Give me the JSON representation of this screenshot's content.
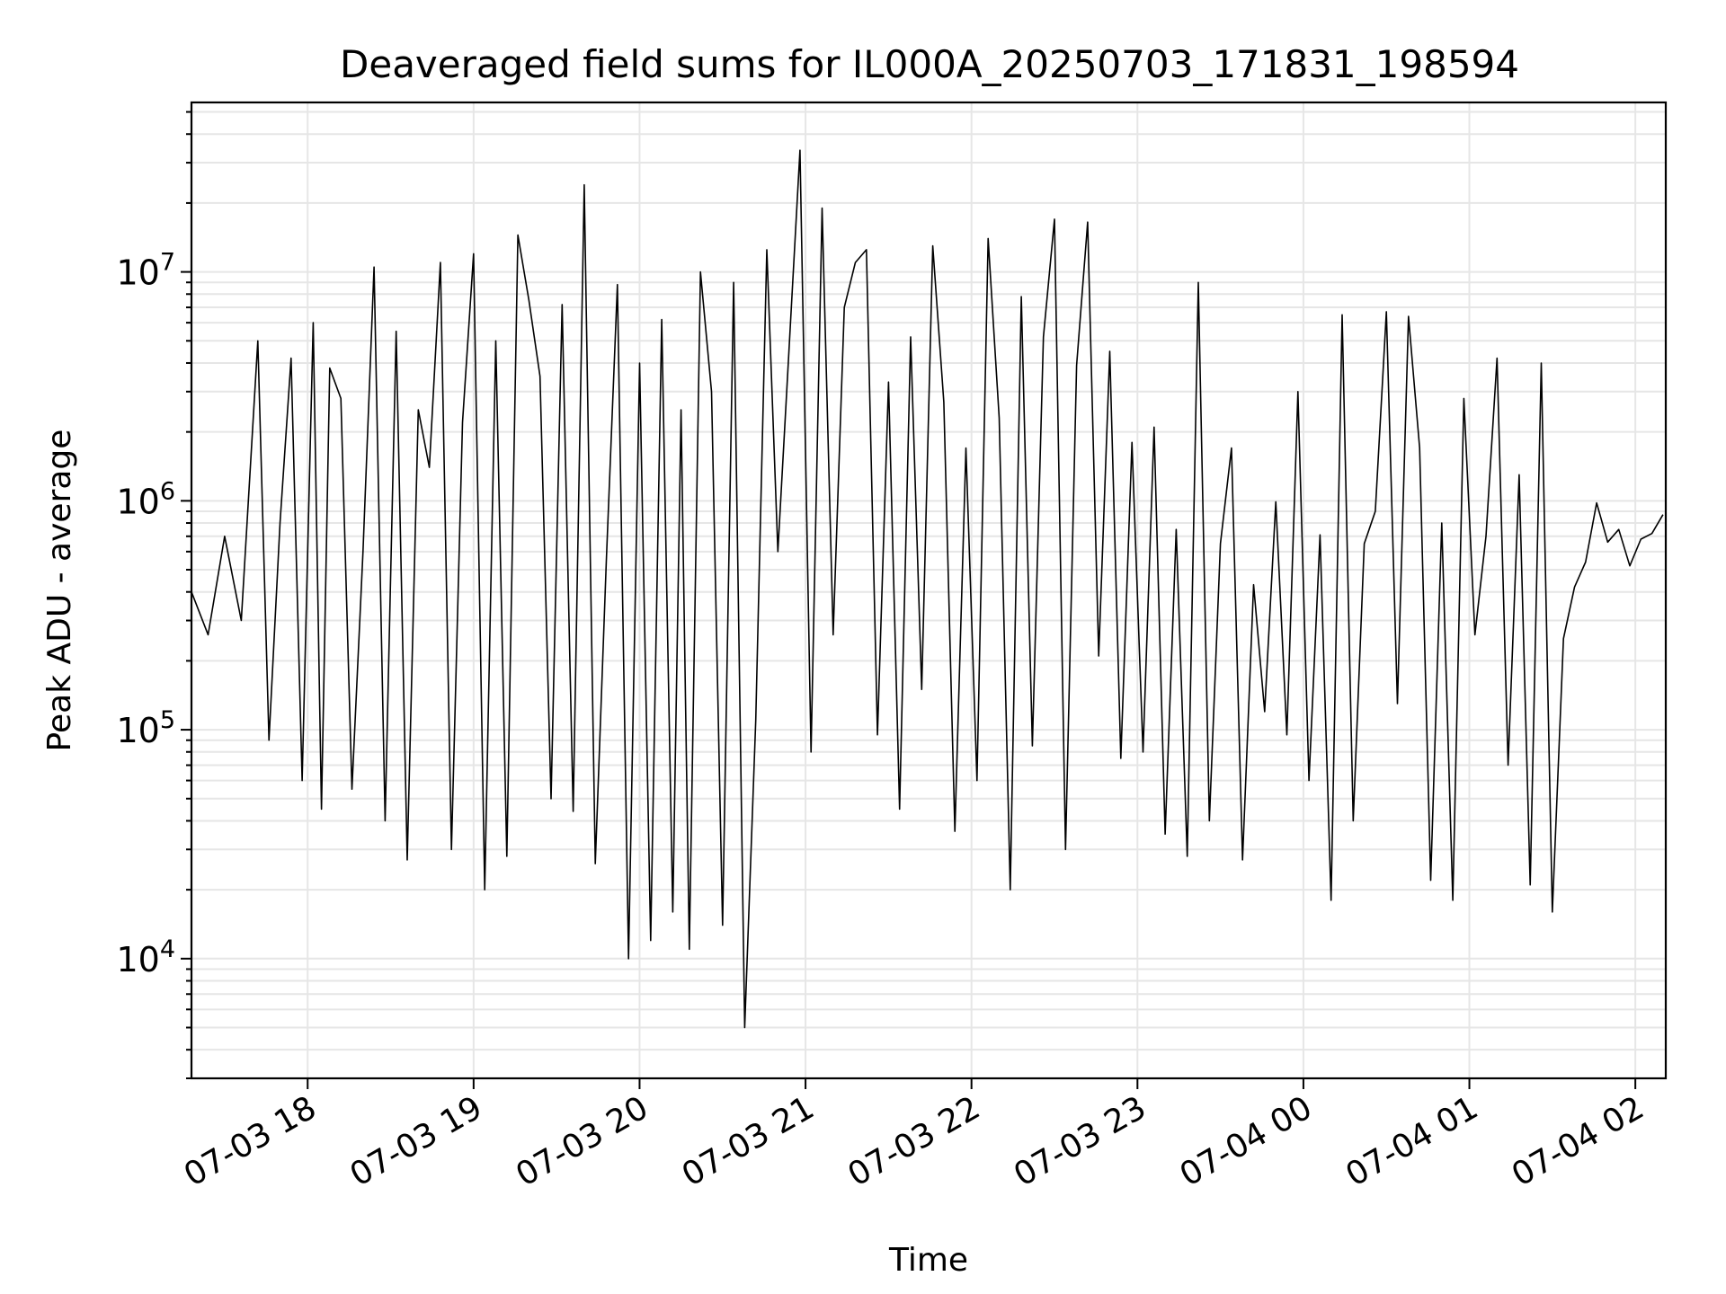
{
  "chart_data": {
    "type": "line",
    "title": "Deaveraged field sums for IL000A_20250703_171831_198594",
    "xlabel": "Time",
    "ylabel": "Peak ADU - average",
    "yscale": "log",
    "ylim": [
      3000,
      55000000
    ],
    "xlim": [
      "2025-07-03 17:18",
      "2025-07-04 02:11"
    ],
    "grid": true,
    "line_color": "#000000",
    "grid_color": "#e6e6e6",
    "x_ticks": [
      {
        "value": "2025-07-03 18:00",
        "label": "07-03 18"
      },
      {
        "value": "2025-07-03 19:00",
        "label": "07-03 19"
      },
      {
        "value": "2025-07-03 20:00",
        "label": "07-03 20"
      },
      {
        "value": "2025-07-03 21:00",
        "label": "07-03 21"
      },
      {
        "value": "2025-07-03 22:00",
        "label": "07-03 22"
      },
      {
        "value": "2025-07-03 23:00",
        "label": "07-03 23"
      },
      {
        "value": "2025-07-04 00:00",
        "label": "07-04 00"
      },
      {
        "value": "2025-07-04 01:00",
        "label": "07-04 01"
      },
      {
        "value": "2025-07-04 02:00",
        "label": "07-04 02"
      }
    ],
    "y_ticks": [
      {
        "value": 10000,
        "base": "10",
        "exp": "4"
      },
      {
        "value": 100000,
        "base": "10",
        "exp": "5"
      },
      {
        "value": 1000000,
        "base": "10",
        "exp": "6"
      },
      {
        "value": 10000000,
        "base": "10",
        "exp": "7"
      }
    ],
    "series": [
      {
        "x": [
          "2025-07-03 17:18",
          "2025-07-03 17:24",
          "2025-07-03 17:30",
          "2025-07-03 17:36",
          "2025-07-03 17:42",
          "2025-07-03 17:46",
          "2025-07-03 17:50",
          "2025-07-03 17:54",
          "2025-07-03 17:58",
          "2025-07-03 18:02",
          "2025-07-03 18:05",
          "2025-07-03 18:08",
          "2025-07-03 18:12",
          "2025-07-03 18:16",
          "2025-07-03 18:20",
          "2025-07-03 18:24",
          "2025-07-03 18:28",
          "2025-07-03 18:32",
          "2025-07-03 18:36",
          "2025-07-03 18:40",
          "2025-07-03 18:44",
          "2025-07-03 18:48",
          "2025-07-03 18:52",
          "2025-07-03 18:56",
          "2025-07-03 19:00",
          "2025-07-03 19:04",
          "2025-07-03 19:08",
          "2025-07-03 19:12",
          "2025-07-03 19:16",
          "2025-07-03 19:20",
          "2025-07-03 19:24",
          "2025-07-03 19:28",
          "2025-07-03 19:32",
          "2025-07-03 19:36",
          "2025-07-03 19:40",
          "2025-07-03 19:44",
          "2025-07-03 19:48",
          "2025-07-03 19:52",
          "2025-07-03 19:56",
          "2025-07-03 20:00",
          "2025-07-03 20:04",
          "2025-07-03 20:08",
          "2025-07-03 20:12",
          "2025-07-03 20:15",
          "2025-07-03 20:18",
          "2025-07-03 20:22",
          "2025-07-03 20:26",
          "2025-07-03 20:30",
          "2025-07-03 20:34",
          "2025-07-03 20:38",
          "2025-07-03 20:42",
          "2025-07-03 20:46",
          "2025-07-03 20:50",
          "2025-07-03 20:54",
          "2025-07-03 20:58",
          "2025-07-03 21:02",
          "2025-07-03 21:06",
          "2025-07-03 21:10",
          "2025-07-03 21:14",
          "2025-07-03 21:18",
          "2025-07-03 21:22",
          "2025-07-03 21:26",
          "2025-07-03 21:30",
          "2025-07-03 21:34",
          "2025-07-03 21:38",
          "2025-07-03 21:42",
          "2025-07-03 21:46",
          "2025-07-03 21:50",
          "2025-07-03 21:54",
          "2025-07-03 21:58",
          "2025-07-03 22:02",
          "2025-07-03 22:06",
          "2025-07-03 22:10",
          "2025-07-03 22:14",
          "2025-07-03 22:18",
          "2025-07-03 22:22",
          "2025-07-03 22:26",
          "2025-07-03 22:30",
          "2025-07-03 22:34",
          "2025-07-03 22:38",
          "2025-07-03 22:42",
          "2025-07-03 22:46",
          "2025-07-03 22:50",
          "2025-07-03 22:54",
          "2025-07-03 22:58",
          "2025-07-03 23:02",
          "2025-07-03 23:06",
          "2025-07-03 23:10",
          "2025-07-03 23:14",
          "2025-07-03 23:18",
          "2025-07-03 23:22",
          "2025-07-03 23:26",
          "2025-07-03 23:30",
          "2025-07-03 23:34",
          "2025-07-03 23:38",
          "2025-07-03 23:42",
          "2025-07-03 23:46",
          "2025-07-03 23:50",
          "2025-07-03 23:54",
          "2025-07-03 23:58",
          "2025-07-04 00:02",
          "2025-07-04 00:06",
          "2025-07-04 00:10",
          "2025-07-04 00:14",
          "2025-07-04 00:18",
          "2025-07-04 00:22",
          "2025-07-04 00:26",
          "2025-07-04 00:30",
          "2025-07-04 00:34",
          "2025-07-04 00:38",
          "2025-07-04 00:42",
          "2025-07-04 00:46",
          "2025-07-04 00:50",
          "2025-07-04 00:54",
          "2025-07-04 00:58",
          "2025-07-04 01:02",
          "2025-07-04 01:06",
          "2025-07-04 01:10",
          "2025-07-04 01:14",
          "2025-07-04 01:18",
          "2025-07-04 01:22",
          "2025-07-04 01:26",
          "2025-07-04 01:30",
          "2025-07-04 01:34",
          "2025-07-04 01:38",
          "2025-07-04 01:42",
          "2025-07-04 01:46",
          "2025-07-04 01:50",
          "2025-07-04 01:54",
          "2025-07-04 01:58",
          "2025-07-04 02:02",
          "2025-07-04 02:06",
          "2025-07-04 02:10"
        ],
        "y": [
          400000,
          260000,
          700000,
          300000,
          5000000,
          90000,
          800000,
          4200000,
          60000,
          6000000,
          45000,
          3800000,
          2800000,
          55000,
          600000,
          10500000,
          40000,
          5500000,
          27000,
          2500000,
          1400000,
          11000000,
          30000,
          2200000,
          12000000,
          20000,
          5000000,
          28000,
          14500000,
          7500000,
          3500000,
          50000,
          7200000,
          44000,
          24000000,
          26000,
          550000,
          8800000,
          10000,
          4000000,
          12000,
          6200000,
          16000,
          2500000,
          11000,
          10000000,
          3000000,
          14000,
          9000000,
          5000,
          110000,
          12500000,
          600000,
          4500000,
          34000000,
          80000,
          19000000,
          260000,
          7000000,
          11000000,
          12500000,
          95000,
          3300000,
          45000,
          5200000,
          150000,
          13000000,
          2700000,
          36000,
          1700000,
          60000,
          14000000,
          2300000,
          20000,
          7800000,
          85000,
          5200000,
          17000000,
          30000,
          3900000,
          16500000,
          210000,
          4500000,
          75000,
          1800000,
          80000,
          2100000,
          35000,
          750000,
          28000,
          9000000,
          40000,
          650000,
          1700000,
          27000,
          430000,
          120000,
          990000,
          95000,
          3000000,
          60000,
          710000,
          18000,
          6500000,
          40000,
          650000,
          900000,
          6700000,
          130000,
          6400000,
          1700000,
          22000,
          800000,
          18000,
          2800000,
          260000,
          700000,
          4200000,
          70000,
          1300000,
          21000,
          4000000,
          16000,
          250000,
          420000,
          540000,
          980000,
          660000,
          750000,
          520000,
          680000,
          720000,
          870000
        ],
        "name": ""
      }
    ]
  }
}
